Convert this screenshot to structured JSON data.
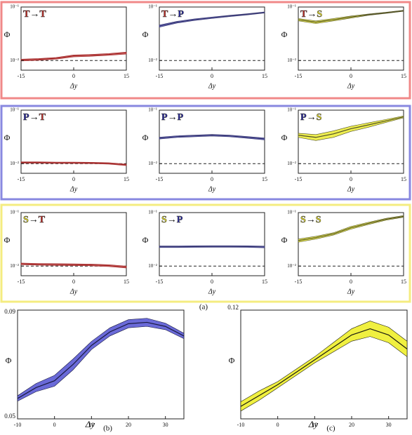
{
  "figure_label": "(a)",
  "chart_data": [
    {
      "type": "line",
      "title": [
        "T",
        "→",
        "T"
      ],
      "title_colors": [
        "#c0302a",
        "#111111",
        "#c0302a"
      ],
      "xlabel": "Δy",
      "ylabel": "Φ",
      "log": true,
      "xlim": [
        -15,
        15
      ],
      "xticks": [
        -15,
        0,
        15
      ],
      "ylim": [
        0.0066,
        0.1
      ],
      "yticks": [
        {
          "value": 0.01,
          "label": "10⁻²"
        },
        {
          "value": 0.1,
          "label": "10⁻¹"
        }
      ],
      "reference_line": 0.01,
      "x": [
        -15,
        -10,
        -5,
        0,
        5,
        10,
        15
      ],
      "series": [
        {
          "color": "#e07a7a",
          "line_color": "#a02828",
          "values": [
            0.0102,
            0.0105,
            0.011,
            0.0122,
            0.0125,
            0.013,
            0.0138
          ],
          "errors": [
            0.0004,
            0.0004,
            0.0004,
            0.0005,
            0.0005,
            0.0005,
            0.0006
          ]
        }
      ]
    },
    {
      "type": "line",
      "title": [
        "T",
        "→",
        "P"
      ],
      "title_colors": [
        "#c0302a",
        "#111111",
        "#2a2a9c"
      ],
      "xlabel": "Δy",
      "ylabel": "Φ",
      "log": true,
      "xlim": [
        -15,
        15
      ],
      "xticks": [
        -15,
        0,
        15
      ],
      "ylim": [
        0.0066,
        0.1
      ],
      "yticks": [
        {
          "value": 0.01,
          "label": "10⁻²"
        },
        {
          "value": 0.1,
          "label": "10⁻¹"
        }
      ],
      "reference_line": 0.01,
      "x": [
        -15,
        -10,
        -5,
        0,
        5,
        10,
        15
      ],
      "series": [
        {
          "color": "#7070d8",
          "line_color": "#3a3a70",
          "values": [
            0.044,
            0.052,
            0.058,
            0.063,
            0.068,
            0.073,
            0.079
          ],
          "errors": [
            0.002,
            0.002,
            0.002,
            0.002,
            0.002,
            0.002,
            0.002
          ]
        }
      ]
    },
    {
      "type": "line",
      "title": [
        "T",
        "→",
        "S"
      ],
      "title_colors": [
        "#c0302a",
        "#111111",
        "#e8e020"
      ],
      "xlabel": "Δy",
      "ylabel": "Φ",
      "log": true,
      "xlim": [
        -15,
        15
      ],
      "xticks": [
        -15,
        0,
        15
      ],
      "ylim": [
        0.0066,
        0.1
      ],
      "yticks": [
        {
          "value": 0.01,
          "label": "10⁻²"
        },
        {
          "value": 0.1,
          "label": "10⁻¹"
        }
      ],
      "reference_line": 0.01,
      "x": [
        -15,
        -10,
        -5,
        0,
        5,
        10,
        15
      ],
      "series": [
        {
          "color": "#eeee50",
          "line_color": "#505028",
          "values": [
            0.058,
            0.052,
            0.058,
            0.065,
            0.072,
            0.078,
            0.085
          ],
          "errors": [
            0.003,
            0.003,
            0.003,
            0.003,
            0.002,
            0.002,
            0.002
          ]
        }
      ]
    },
    {
      "type": "line",
      "title": [
        "P",
        "→",
        "T"
      ],
      "title_colors": [
        "#2a2a9c",
        "#111111",
        "#c0302a"
      ],
      "xlabel": "Δy",
      "ylabel": "Φ",
      "log": true,
      "xlim": [
        -15,
        15
      ],
      "xticks": [
        -15,
        0,
        15
      ],
      "ylim": [
        0.0066,
        0.1
      ],
      "yticks": [
        {
          "value": 0.01,
          "label": "10⁻²"
        },
        {
          "value": 0.1,
          "label": "10⁻¹"
        }
      ],
      "reference_line": 0.01,
      "x": [
        -15,
        -10,
        -5,
        0,
        5,
        10,
        15
      ],
      "series": [
        {
          "color": "#e07a7a",
          "line_color": "#a02828",
          "values": [
            0.0105,
            0.0105,
            0.0104,
            0.0104,
            0.0103,
            0.0101,
            0.0095
          ],
          "errors": [
            0.0003,
            0.0003,
            0.0003,
            0.0003,
            0.0003,
            0.0003,
            0.0003
          ]
        }
      ]
    },
    {
      "type": "line",
      "title": [
        "P",
        "→",
        "P"
      ],
      "title_colors": [
        "#2a2a9c",
        "#111111",
        "#2a2a9c"
      ],
      "xlabel": "Δy",
      "ylabel": "Φ",
      "log": true,
      "xlim": [
        -15,
        15
      ],
      "xticks": [
        -15,
        0,
        15
      ],
      "ylim": [
        0.0066,
        0.1
      ],
      "yticks": [
        {
          "value": 0.01,
          "label": "10⁻²"
        },
        {
          "value": 0.1,
          "label": "10⁻¹"
        }
      ],
      "reference_line": 0.01,
      "x": [
        -15,
        -10,
        -5,
        0,
        5,
        10,
        15
      ],
      "series": [
        {
          "color": "#7070d8",
          "line_color": "#3a3a70",
          "values": [
            0.03,
            0.032,
            0.033,
            0.034,
            0.033,
            0.031,
            0.029
          ],
          "errors": [
            0.0012,
            0.0012,
            0.0012,
            0.0012,
            0.0012,
            0.0012,
            0.0012
          ]
        }
      ]
    },
    {
      "type": "line",
      "title": [
        "P",
        "→",
        "S"
      ],
      "title_colors": [
        "#2a2a9c",
        "#111111",
        "#e8e020"
      ],
      "xlabel": "Δy",
      "ylabel": "Φ",
      "log": true,
      "xlim": [
        -15,
        15
      ],
      "xticks": [
        -15,
        0,
        15
      ],
      "ylim": [
        0.0066,
        0.1
      ],
      "yticks": [
        {
          "value": 0.01,
          "label": "10⁻²"
        },
        {
          "value": 0.1,
          "label": "10⁻¹"
        }
      ],
      "reference_line": 0.01,
      "x": [
        -15,
        -10,
        -5,
        0,
        5,
        10,
        15
      ],
      "series": [
        {
          "color": "#eeee50",
          "line_color": "#505028",
          "values": [
            0.034,
            0.031,
            0.036,
            0.045,
            0.053,
            0.063,
            0.075
          ],
          "errors": [
            0.003,
            0.004,
            0.005,
            0.005,
            0.005,
            0.004,
            0.003
          ]
        }
      ]
    },
    {
      "type": "line",
      "title": [
        "S",
        "→",
        "T"
      ],
      "title_colors": [
        "#e8e020",
        "#111111",
        "#c0302a"
      ],
      "xlabel": "Δy",
      "ylabel": "Φ",
      "log": true,
      "xlim": [
        -15,
        15
      ],
      "xticks": [
        -15,
        0,
        15
      ],
      "ylim": [
        0.0066,
        0.1
      ],
      "yticks": [
        {
          "value": 0.01,
          "label": "10⁻²"
        },
        {
          "value": 0.1,
          "label": "10⁻¹"
        }
      ],
      "reference_line": 0.01,
      "x": [
        -15,
        -10,
        -5,
        0,
        5,
        10,
        15
      ],
      "series": [
        {
          "color": "#e07a7a",
          "line_color": "#a02828",
          "values": [
            0.011,
            0.0108,
            0.0107,
            0.0106,
            0.0105,
            0.0102,
            0.0096
          ],
          "errors": [
            0.0004,
            0.0004,
            0.0004,
            0.0004,
            0.0004,
            0.0004,
            0.0004
          ]
        }
      ]
    },
    {
      "type": "line",
      "title": [
        "S",
        "→",
        "P"
      ],
      "title_colors": [
        "#e8e020",
        "#111111",
        "#2a2a9c"
      ],
      "xlabel": "Δy",
      "ylabel": "Φ",
      "log": true,
      "xlim": [
        -15,
        15
      ],
      "xticks": [
        -15,
        0,
        15
      ],
      "ylim": [
        0.0066,
        0.1
      ],
      "yticks": [
        {
          "value": 0.01,
          "label": "10⁻²"
        },
        {
          "value": 0.1,
          "label": "10⁻¹"
        }
      ],
      "reference_line": 0.01,
      "x": [
        -15,
        -10,
        -5,
        0,
        5,
        10,
        15
      ],
      "series": [
        {
          "color": "#7070d8",
          "line_color": "#3a3a70",
          "values": [
            0.023,
            0.023,
            0.0232,
            0.0233,
            0.0233,
            0.0232,
            0.0228
          ],
          "errors": [
            0.0008,
            0.0008,
            0.0008,
            0.0008,
            0.0008,
            0.0008,
            0.0008
          ]
        }
      ]
    },
    {
      "type": "line",
      "title": [
        "S",
        "→",
        "S"
      ],
      "title_colors": [
        "#e8e020",
        "#111111",
        "#e8e020"
      ],
      "xlabel": "Δy",
      "ylabel": "Φ",
      "log": true,
      "xlim": [
        -15,
        15
      ],
      "xticks": [
        -15,
        0,
        15
      ],
      "ylim": [
        0.0066,
        0.1
      ],
      "yticks": [
        {
          "value": 0.01,
          "label": "10⁻²"
        },
        {
          "value": 0.1,
          "label": "10⁻¹"
        }
      ],
      "reference_line": 0.01,
      "x": [
        -15,
        -10,
        -5,
        0,
        5,
        10,
        15
      ],
      "series": [
        {
          "color": "#eeee50",
          "line_color": "#505028",
          "values": [
            0.03,
            0.034,
            0.04,
            0.052,
            0.063,
            0.075,
            0.085
          ],
          "errors": [
            0.002,
            0.002,
            0.002,
            0.003,
            0.003,
            0.003,
            0.003
          ]
        }
      ]
    },
    {
      "type": "line",
      "label": "(b)",
      "xlabel": "Δy",
      "ylabel": "Φ",
      "log": false,
      "xlim": [
        -10,
        35
      ],
      "xticks": [
        -10,
        0,
        10,
        20,
        30
      ],
      "ylim": [
        0.05,
        0.09
      ],
      "yticks": [
        0.05,
        0.09
      ],
      "x": [
        -10,
        -5,
        0,
        5,
        10,
        15,
        20,
        25,
        30,
        35
      ],
      "series": [
        {
          "color": "#6a6ad8",
          "line_color": "#1a1a40",
          "values": [
            0.0575,
            0.0615,
            0.064,
            0.07,
            0.077,
            0.082,
            0.085,
            0.0855,
            0.084,
            0.0805
          ],
          "errors": [
            0.001,
            0.0015,
            0.002,
            0.002,
            0.0015,
            0.0015,
            0.0015,
            0.0015,
            0.0012,
            0.001
          ]
        }
      ]
    },
    {
      "type": "line",
      "label": "(c)",
      "xlabel": "Δy",
      "ylabel": "Φ",
      "log": false,
      "xlim": [
        -10,
        35
      ],
      "xticks": [
        -10,
        0,
        10,
        20,
        30
      ],
      "ylim": [
        0.05,
        0.12
      ],
      "yticks": [
        0.12
      ],
      "x": [
        -10,
        -5,
        0,
        5,
        10,
        15,
        20,
        25,
        30,
        35
      ],
      "series": [
        {
          "color": "#f0f040",
          "line_color": "#1a1a10",
          "values": [
            0.058,
            0.065,
            0.072,
            0.08,
            0.088,
            0.096,
            0.104,
            0.108,
            0.104,
            0.095
          ],
          "errors": [
            0.003,
            0.003,
            0.002,
            0.002,
            0.002,
            0.003,
            0.004,
            0.005,
            0.005,
            0.005
          ]
        }
      ]
    }
  ]
}
